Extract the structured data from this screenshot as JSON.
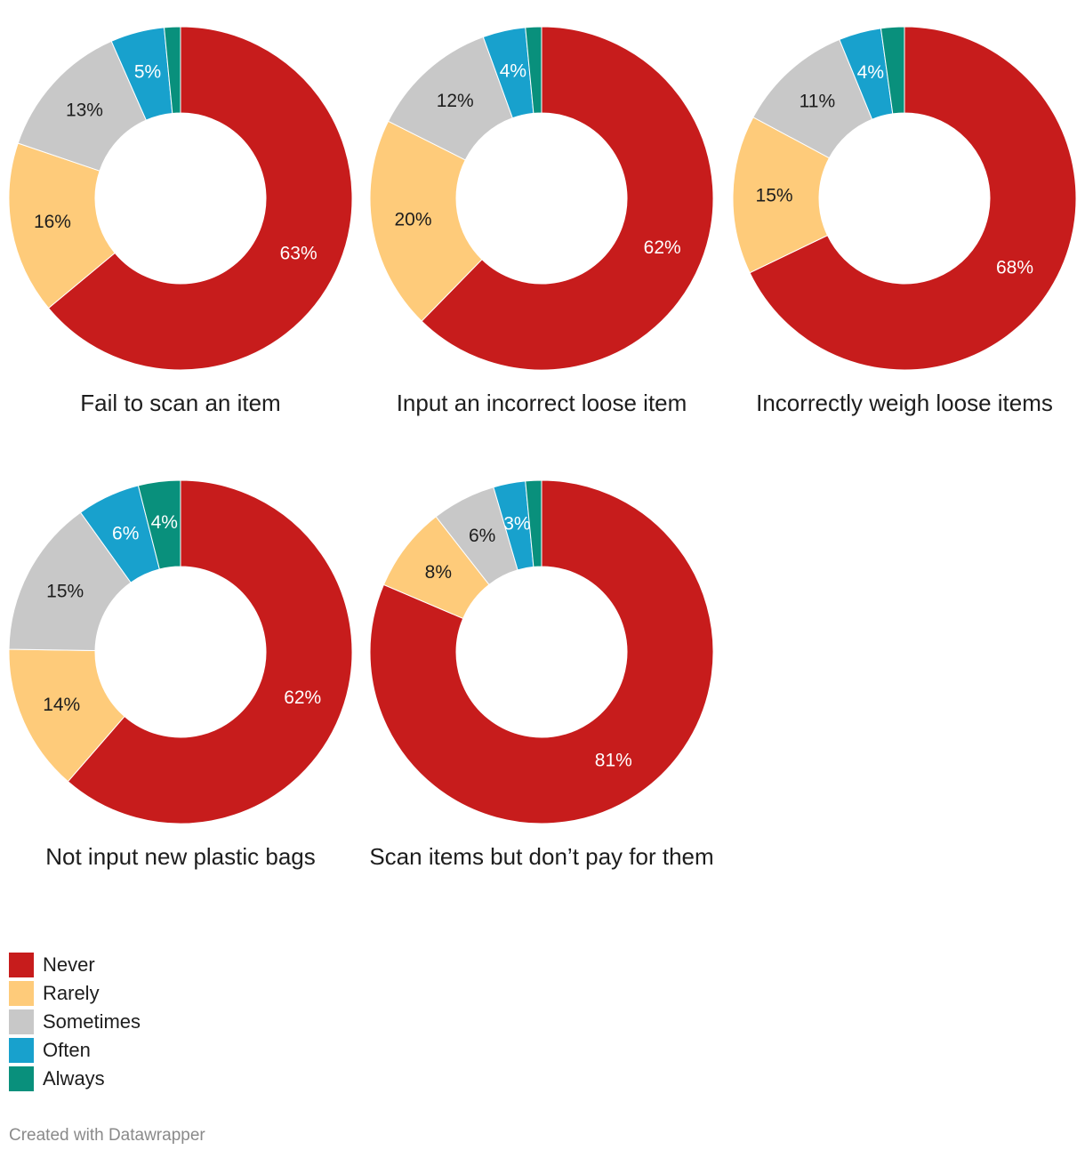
{
  "chart_data": {
    "type": "pie",
    "subtype": "donut-small-multiples",
    "categories": [
      "Never",
      "Rarely",
      "Sometimes",
      "Often",
      "Always"
    ],
    "colors": [
      "#c71c1c",
      "#fecb7a",
      "#c8c8c8",
      "#18a1cd",
      "#09907c"
    ],
    "label_colors": [
      "#ffffff",
      "#1d1d1d",
      "#1d1d1d",
      "#ffffff",
      "#ffffff"
    ],
    "charts": [
      {
        "title": "Fail to scan an item",
        "values": [
          63,
          16,
          13,
          5,
          1.5
        ],
        "labels": [
          "63%",
          "16%",
          "13%",
          "5%",
          ""
        ]
      },
      {
        "title": "Input an incorrect loose item",
        "values": [
          62,
          20,
          12,
          4,
          1.5
        ],
        "labels": [
          "62%",
          "20%",
          "12%",
          "4%",
          ""
        ]
      },
      {
        "title": "Incorrectly weigh loose items",
        "values": [
          68,
          15,
          11,
          4,
          2.2
        ],
        "labels": [
          "68%",
          "15%",
          "11%",
          "4%",
          ""
        ]
      },
      {
        "title": "Not input new plastic bags",
        "values": [
          62,
          14,
          15,
          6,
          4
        ],
        "labels": [
          "62%",
          "14%",
          "15%",
          "6%",
          "4%"
        ]
      },
      {
        "title": "Scan items but don’t pay for them",
        "values": [
          81,
          8,
          6,
          3,
          1.5
        ],
        "labels": [
          "81%",
          "8%",
          "6%",
          "3%",
          ""
        ]
      }
    ],
    "legend_placement": "bottom-left"
  },
  "legend": {
    "items": [
      "Never",
      "Rarely",
      "Sometimes",
      "Often",
      "Always"
    ]
  },
  "footer": {
    "credit": "Created with Datawrapper"
  }
}
